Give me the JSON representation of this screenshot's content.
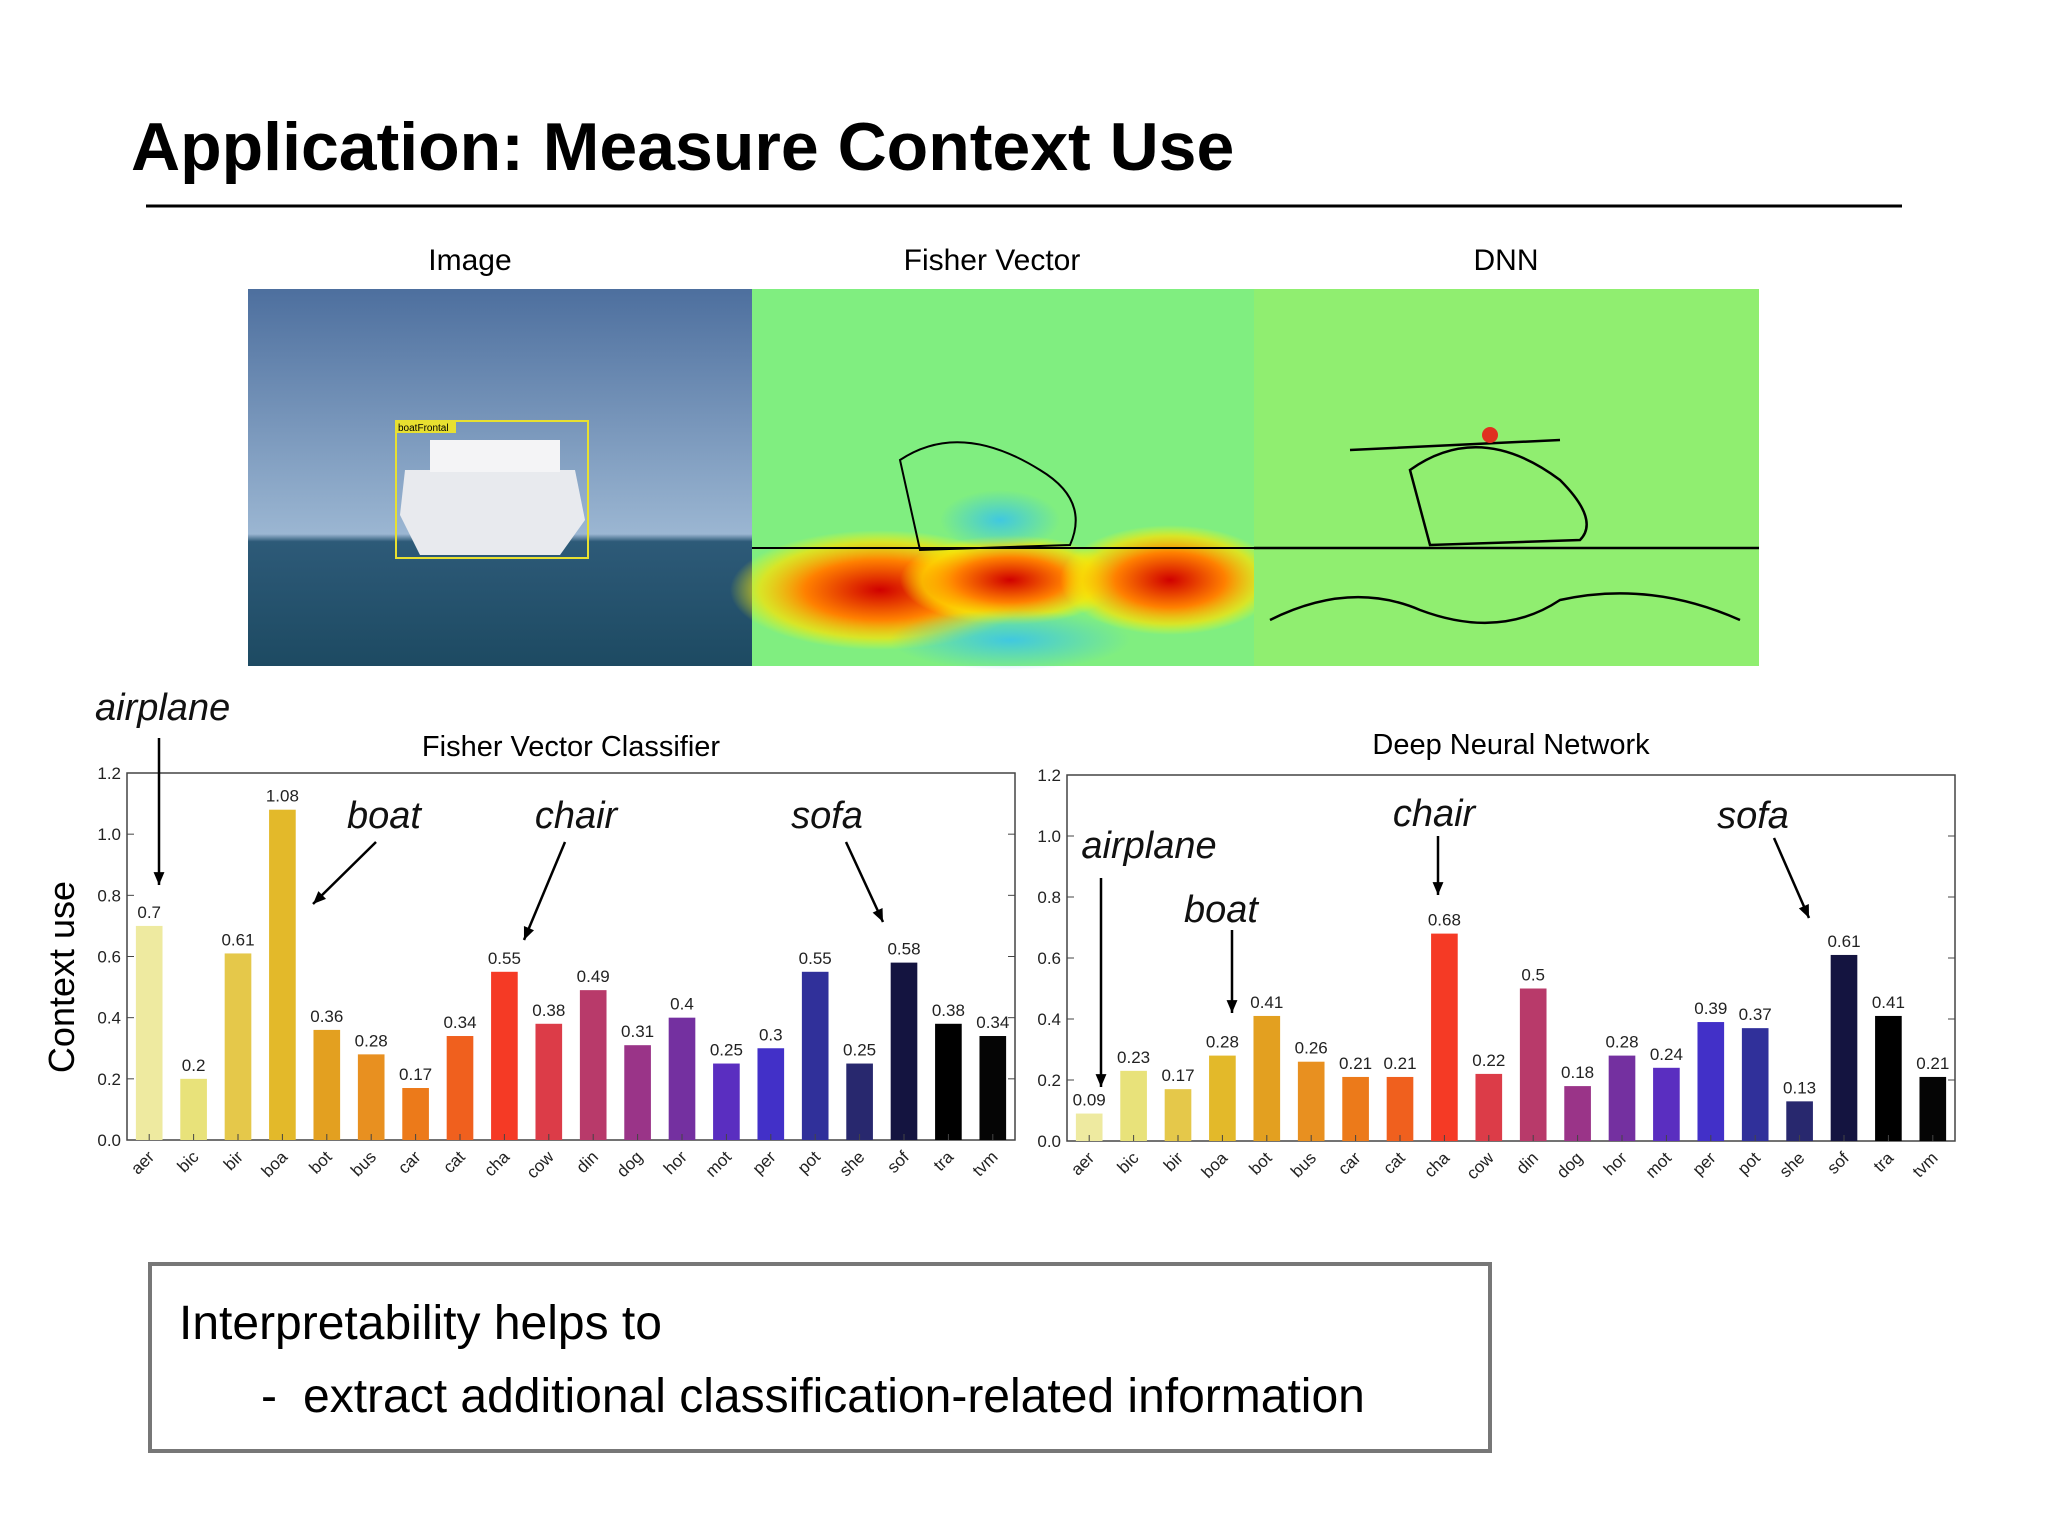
{
  "title": "Application: Measure Context Use",
  "image_labels": [
    "Image",
    "Fisher Vector",
    "DNN"
  ],
  "detection_label": "boatFrontal",
  "box": {
    "line1": "Interpretability helps to",
    "bullet": "-",
    "line2": "extract additional classification-related information"
  },
  "chart_data": [
    {
      "type": "bar",
      "title": "Fisher Vector Classifier",
      "ylabel": "Context use",
      "categories": [
        "aer",
        "bic",
        "bir",
        "boa",
        "bot",
        "bus",
        "car",
        "cat",
        "cha",
        "cow",
        "din",
        "dog",
        "hor",
        "mot",
        "per",
        "pot",
        "she",
        "sof",
        "tra",
        "tvm"
      ],
      "values": [
        0.7,
        0.2,
        0.61,
        1.08,
        0.36,
        0.28,
        0.17,
        0.34,
        0.55,
        0.38,
        0.49,
        0.31,
        0.4,
        0.25,
        0.3,
        0.55,
        0.25,
        0.58,
        0.38,
        0.34
      ],
      "colors": [
        "#eeeaa0",
        "#e8e27a",
        "#e5c84a",
        "#e3b92a",
        "#e3a020",
        "#e89020",
        "#ec7a1a",
        "#f0601e",
        "#f53a25",
        "#dc3c48",
        "#b83a6a",
        "#9a3488",
        "#7430a0",
        "#5a2ec0",
        "#4230c8",
        "#30309a",
        "#28286e",
        "#141440",
        "#000000",
        "#050505"
      ],
      "ylim": [
        0,
        1.2
      ],
      "yticks": [
        {
          "value": 0,
          "label": "0.0"
        },
        0.2,
        0.4,
        0.6,
        0.8,
        {
          "value": 1,
          "label": "1.0"
        },
        1.2
      ],
      "annotations": [
        "airplane",
        "boat",
        "chair",
        "sofa"
      ]
    },
    {
      "type": "bar",
      "title": "Deep Neural Network",
      "categories": [
        "aer",
        "bic",
        "bir",
        "boa",
        "bot",
        "bus",
        "car",
        "cat",
        "cha",
        "cow",
        "din",
        "dog",
        "hor",
        "mot",
        "per",
        "pot",
        "she",
        "sof",
        "tra",
        "tvm"
      ],
      "values": [
        0.09,
        0.23,
        0.17,
        0.28,
        0.41,
        0.26,
        0.21,
        0.21,
        0.68,
        0.22,
        0.5,
        0.18,
        0.28,
        0.24,
        0.39,
        0.37,
        0.13,
        0.61,
        0.41,
        0.21
      ],
      "colors": [
        "#eeeaa0",
        "#e8e27a",
        "#e5c84a",
        "#e3b92a",
        "#e3a020",
        "#e89020",
        "#ec7a1a",
        "#f0601e",
        "#f53a25",
        "#dc3c48",
        "#b83a6a",
        "#9a3488",
        "#7430a0",
        "#5a2ec0",
        "#4230c8",
        "#30309a",
        "#28286e",
        "#141440",
        "#000000",
        "#050505"
      ],
      "ylim": [
        0,
        1.2
      ],
      "yticks": [
        {
          "value": 0,
          "label": "0.0"
        },
        0.2,
        0.4,
        0.6,
        0.8,
        {
          "value": 1,
          "label": "1.0"
        },
        1.2
      ],
      "annotations": [
        "airplane",
        "boat",
        "chair",
        "sofa"
      ]
    }
  ]
}
